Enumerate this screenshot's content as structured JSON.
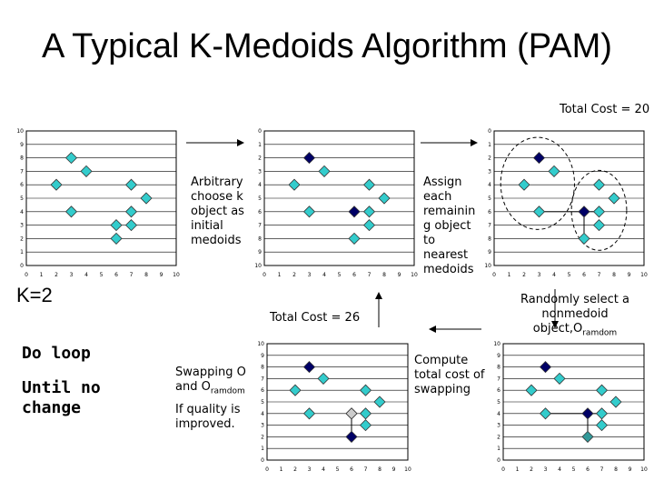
{
  "title": "A Typical K-Medoids Algorithm (PAM)",
  "total_cost_top": "Total Cost = 20",
  "total_cost_mid": "Total Cost = 26",
  "k_label": "K=2",
  "do_loop": "Do loop",
  "until_no_change": "Until no change",
  "step1": "Arbitrary choose k object as initial medoids",
  "step2": "Assign each remainin g object to nearest medoids",
  "step3_main": "Randomly select a nonmedoid object,O",
  "step3_sub": "ramdom",
  "step4": "Compute total cost of swapping",
  "swap_main": "Swapping O and O",
  "swap_sub": "ramdom",
  "improved": "If quality is improved.",
  "colors": {
    "point": "#33CCCC",
    "medoid": "#000066",
    "random": "#339999",
    "swapped": "#CCCCCC"
  },
  "chart_data": [
    {
      "type": "scatter",
      "name": "initial",
      "xlim": [
        0,
        10
      ],
      "ylim": [
        0,
        10
      ],
      "x_ticks": [
        "0",
        "1",
        "2",
        "3",
        "4",
        "5",
        "6",
        "7",
        "8",
        "9",
        "10"
      ],
      "y_ticks": [
        "0",
        "1",
        "2",
        "3",
        "4",
        "5",
        "6",
        "7",
        "8",
        "9",
        "10"
      ],
      "points": [
        [
          2,
          6
        ],
        [
          3,
          8
        ],
        [
          3,
          4
        ],
        [
          4,
          7
        ],
        [
          6,
          3
        ],
        [
          6,
          2
        ],
        [
          7,
          3
        ],
        [
          7,
          4
        ],
        [
          8,
          5
        ],
        [
          7,
          6
        ]
      ],
      "medoids": []
    },
    {
      "type": "scatter",
      "name": "initial-medoids",
      "xlim": [
        0,
        10
      ],
      "ylim": [
        0,
        10
      ],
      "x_ticks": [
        "0",
        "1",
        "2",
        "3",
        "4",
        "5",
        "6",
        "7",
        "8",
        "9",
        "10"
      ],
      "y_ticks": [
        "10",
        "9",
        "8",
        "7",
        "6",
        "5",
        "4",
        "3",
        "2",
        "1",
        "0"
      ],
      "points": [
        [
          2,
          6
        ],
        [
          4,
          7
        ],
        [
          3,
          4
        ],
        [
          6,
          2
        ],
        [
          7,
          3
        ],
        [
          7,
          4
        ],
        [
          8,
          5
        ],
        [
          7,
          6
        ]
      ],
      "medoids": [
        [
          3,
          8
        ],
        [
          6,
          4
        ]
      ]
    },
    {
      "type": "scatter",
      "name": "assigned-clusters",
      "xlim": [
        0,
        10
      ],
      "ylim": [
        0,
        10
      ],
      "x_ticks": [
        "0",
        "1",
        "2",
        "3",
        "4",
        "5",
        "6",
        "7",
        "8",
        "9",
        "10"
      ],
      "y_ticks": [
        "10",
        "9",
        "8",
        "7",
        "6",
        "5",
        "4",
        "3",
        "2",
        "1",
        "0"
      ],
      "points": [
        [
          2,
          6
        ],
        [
          4,
          7
        ],
        [
          3,
          4
        ],
        [
          6,
          2
        ],
        [
          7,
          3
        ],
        [
          7,
          4
        ],
        [
          8,
          5
        ],
        [
          7,
          6
        ]
      ],
      "medoids": [
        [
          3,
          8
        ],
        [
          6,
          4
        ]
      ],
      "clusters": 2
    },
    {
      "type": "scatter",
      "name": "random-selected",
      "xlim": [
        0,
        10
      ],
      "ylim": [
        0,
        10
      ],
      "x_ticks": [
        "0",
        "1",
        "2",
        "3",
        "4",
        "5",
        "6",
        "7",
        "8",
        "9",
        "10"
      ],
      "y_ticks": [
        "0",
        "1",
        "2",
        "3",
        "4",
        "5",
        "6",
        "7",
        "8",
        "9",
        "10"
      ],
      "points": [
        [
          2,
          6
        ],
        [
          4,
          7
        ],
        [
          3,
          4
        ],
        [
          7,
          3
        ],
        [
          7,
          4
        ],
        [
          8,
          5
        ],
        [
          7,
          6
        ]
      ],
      "medoids": [
        [
          3,
          8
        ],
        [
          6,
          4
        ]
      ],
      "random": [
        [
          6,
          2
        ]
      ]
    },
    {
      "type": "scatter",
      "name": "swapped",
      "xlim": [
        0,
        10
      ],
      "ylim": [
        0,
        10
      ],
      "x_ticks": [
        "0",
        "1",
        "2",
        "3",
        "4",
        "5",
        "6",
        "7",
        "8",
        "9",
        "10"
      ],
      "y_ticks": [
        "0",
        "1",
        "2",
        "3",
        "4",
        "5",
        "6",
        "7",
        "8",
        "9",
        "10"
      ],
      "points": [
        [
          2,
          6
        ],
        [
          4,
          7
        ],
        [
          3,
          4
        ],
        [
          6,
          4
        ],
        [
          7,
          3
        ],
        [
          7,
          4
        ],
        [
          8,
          5
        ],
        [
          7,
          6
        ]
      ],
      "medoids": [
        [
          3,
          8
        ],
        [
          6,
          2
        ]
      ],
      "swapped": [
        [
          6,
          4
        ]
      ]
    }
  ]
}
